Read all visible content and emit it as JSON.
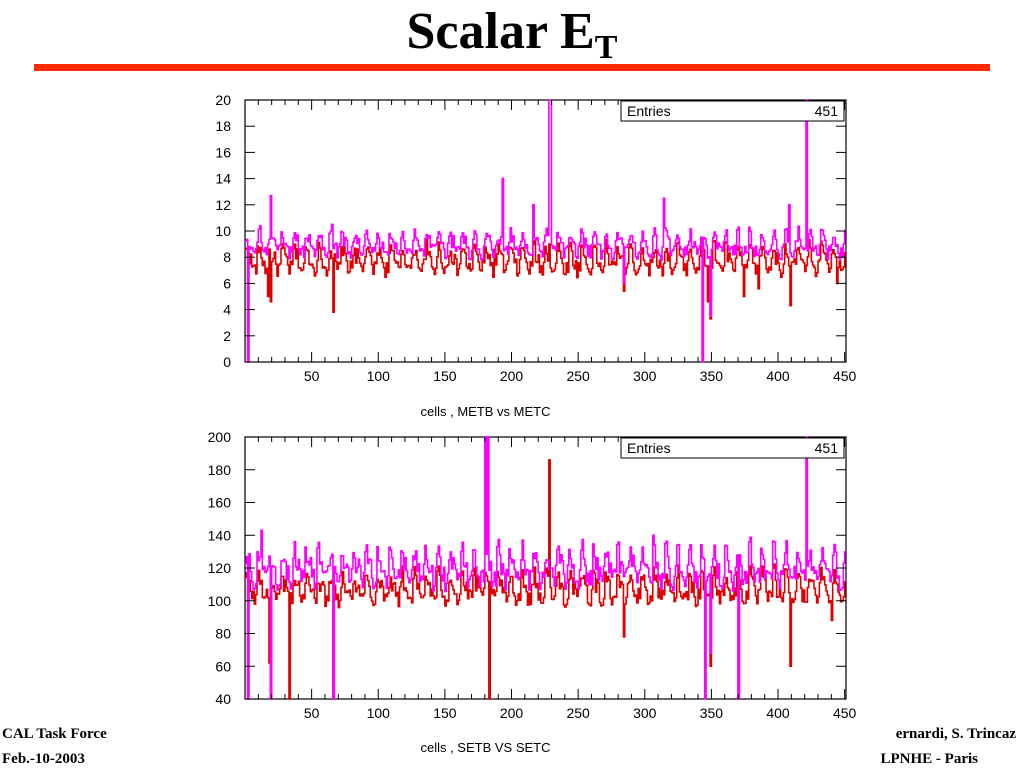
{
  "title": {
    "main": "Scalar E",
    "sub": "T"
  },
  "footer": {
    "left_line1": "CAL Task Force",
    "left_line2": "Feb.-10-2003",
    "right_line1": "ernardi, S. Trincaz",
    "right_line2": "LPNHE - Paris"
  },
  "colors": {
    "accent_rule": "#ff2a00",
    "series_b": "#e00000",
    "series_c": "#ff00ff"
  },
  "chart_data": [
    {
      "type": "line",
      "xlabel": "cells ,  METB vs METC",
      "ylabel": "",
      "xlim": [
        0,
        451
      ],
      "ylim": [
        0,
        20
      ],
      "xticks": [
        50,
        100,
        150,
        200,
        250,
        300,
        350,
        400,
        450
      ],
      "yticks": [
        0,
        2,
        4,
        6,
        8,
        10,
        12,
        14,
        16,
        18,
        20
      ],
      "stats_label": "Entries",
      "stats_value": "451",
      "series": [
        {
          "color": "#e00000",
          "baseline": 7.6,
          "amplitude": 0.9,
          "spikes": [
            [
              17,
              5.0
            ],
            [
              19,
              4.6
            ],
            [
              66,
              3.8
            ],
            [
              187,
              8.6
            ],
            [
              228,
              9.0
            ],
            [
              284,
              5.4
            ],
            [
              347,
              4.6
            ],
            [
              349,
              3.3
            ],
            [
              374,
              5.0
            ],
            [
              385,
              5.6
            ],
            [
              409,
              4.3
            ],
            [
              444,
              6.0
            ]
          ]
        },
        {
          "color": "#ff00ff",
          "baseline": 8.8,
          "amplitude": 0.8,
          "spikes": [
            [
              2,
              0
            ],
            [
              11,
              10.4
            ],
            [
              19,
              12.7
            ],
            [
              65,
              10.5
            ],
            [
              193,
              14.0
            ],
            [
              216,
              12.0
            ],
            [
              228,
              20
            ],
            [
              229,
              20
            ],
            [
              284,
              6.0
            ],
            [
              314,
              12.5
            ],
            [
              343,
              0
            ],
            [
              349,
              3.5
            ],
            [
              408,
              12.0
            ],
            [
              421,
              20
            ],
            [
              448,
              8.0
            ]
          ]
        }
      ]
    },
    {
      "type": "line",
      "xlabel": "cells ,  SETB VS SETC",
      "ylabel": "",
      "xlim": [
        0,
        451
      ],
      "ylim": [
        40,
        200
      ],
      "xticks": [
        50,
        100,
        150,
        200,
        250,
        300,
        350,
        400,
        450
      ],
      "yticks": [
        40,
        60,
        80,
        100,
        120,
        140,
        160,
        180,
        200
      ],
      "stats_label": "Entries",
      "stats_value": "451",
      "series": [
        {
          "color": "#e00000",
          "baseline": 106,
          "amplitude": 8,
          "spikes": [
            [
              18,
              62
            ],
            [
              19,
              40
            ],
            [
              33,
              40
            ],
            [
              66,
              40
            ],
            [
              183,
              40
            ],
            [
              228,
              186
            ],
            [
              284,
              78
            ],
            [
              349,
              60
            ],
            [
              370,
              40
            ],
            [
              409,
              60
            ],
            [
              440,
              88
            ]
          ]
        },
        {
          "color": "#ff00ff",
          "baseline": 118,
          "amplitude": 10,
          "spikes": [
            [
              2,
              40
            ],
            [
              12,
              143
            ],
            [
              19,
              40
            ],
            [
              66,
              40
            ],
            [
              180,
              200
            ],
            [
              182,
              200
            ],
            [
              306,
              140
            ],
            [
              345,
              40
            ],
            [
              349,
              68
            ],
            [
              370,
              40
            ],
            [
              421,
              200
            ],
            [
              448,
              108
            ]
          ]
        }
      ]
    }
  ]
}
